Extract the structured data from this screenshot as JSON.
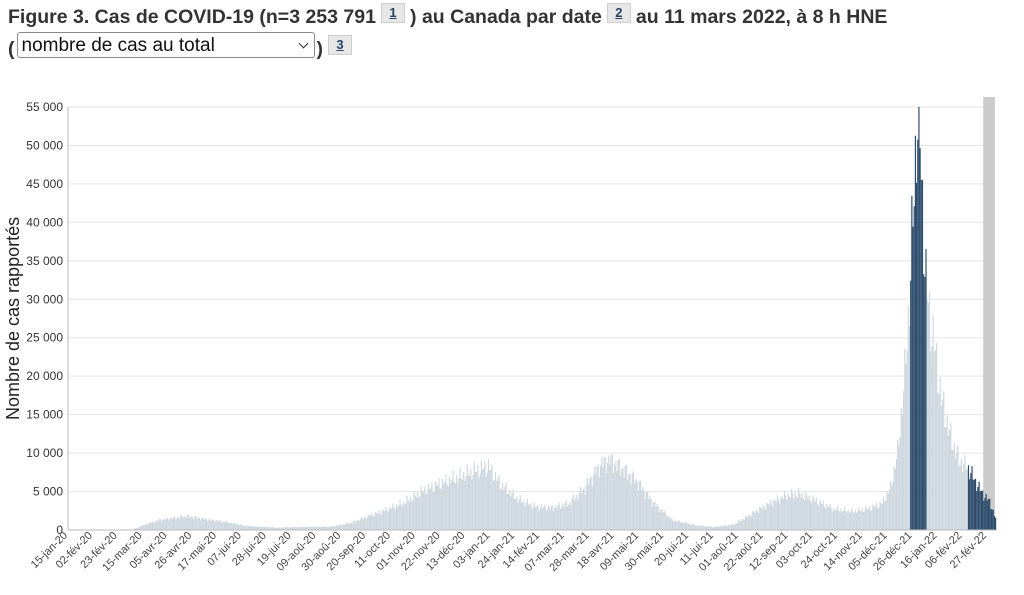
{
  "figure": {
    "title_part1": "Figure 3. Cas de COVID-19 (n=3 253 791",
    "footnote1": "1",
    "title_part2": ") au Canada par date",
    "footnote2": "2",
    "title_part3": "au 11 mars 2022, à 8 h HNE",
    "paren_open": "(",
    "paren_close": ")",
    "footnote3": "3",
    "select": {
      "selected": "nombre de cas au total"
    }
  },
  "colors": {
    "bar_light": "#cfd8e0",
    "bar_dark": "#2f4e6e",
    "recent_band": "#cccccc",
    "grid": "#e6e6e6"
  },
  "chart_data": {
    "type": "bar",
    "ylabel": "Nombre de cas rapportés",
    "xlabel": "",
    "ylim": [
      0,
      55000
    ],
    "y_ticks": [
      {
        "v": 0,
        "label": "0"
      },
      {
        "v": 5000,
        "label": "5 000"
      },
      {
        "v": 10000,
        "label": "10 000"
      },
      {
        "v": 15000,
        "label": "15 000"
      },
      {
        "v": 20000,
        "label": "20 000"
      },
      {
        "v": 25000,
        "label": "25 000"
      },
      {
        "v": 30000,
        "label": "30 000"
      },
      {
        "v": 35000,
        "label": "35 000"
      },
      {
        "v": 40000,
        "label": "40 000"
      },
      {
        "v": 45000,
        "label": "45 000"
      },
      {
        "v": 50000,
        "label": "50 000"
      },
      {
        "v": 55000,
        "label": "55 000"
      }
    ],
    "x_start": "2020-01-15",
    "x_end": "2022-03-11",
    "x_ticks": [
      "15-jan-20",
      "02-fév-20",
      "23-fév-20",
      "15-mar-20",
      "05-avr-20",
      "26-avr-20",
      "17-mai-20",
      "07-jui-20",
      "28-jui-20",
      "19-jui-20",
      "09-aoû-20",
      "30-aoû-20",
      "20-sep-20",
      "11-oct-20",
      "01-nov-20",
      "22-nov-20",
      "13-déc-20",
      "03-jan-21",
      "24-jan-21",
      "14-fév-21",
      "07-mar-21",
      "28-mar-21",
      "18-avr-21",
      "09-mai-21",
      "30-mai-21",
      "20-jui-21",
      "11-jui-21",
      "01-aoû-21",
      "22-aoû-21",
      "12-sep-21",
      "03-oct-21",
      "24-oct-21",
      "14-nov-21",
      "05-déc-21",
      "26-déc-21",
      "16-jan-22",
      "06-fév-22",
      "27-fév-22"
    ],
    "highlight": {
      "from": "2022-02-16",
      "to": "2022-03-11",
      "note": "period shown dark"
    },
    "shaded_recent": {
      "from": "2022-03-01",
      "to": "2022-03-11"
    },
    "series_points": [
      [
        "2020-01-15",
        0
      ],
      [
        "2020-03-01",
        0
      ],
      [
        "2020-03-10",
        100
      ],
      [
        "2020-03-20",
        700
      ],
      [
        "2020-04-01",
        1300
      ],
      [
        "2020-04-25",
        1800
      ],
      [
        "2020-05-10",
        1400
      ],
      [
        "2020-05-25",
        1100
      ],
      [
        "2020-06-15",
        500
      ],
      [
        "2020-07-10",
        300
      ],
      [
        "2020-08-01",
        400
      ],
      [
        "2020-08-25",
        450
      ],
      [
        "2020-09-10",
        900
      ],
      [
        "2020-09-25",
        1800
      ],
      [
        "2020-10-10",
        2600
      ],
      [
        "2020-10-25",
        3500
      ],
      [
        "2020-11-10",
        5000
      ],
      [
        "2020-11-25",
        6000
      ],
      [
        "2020-12-10",
        6800
      ],
      [
        "2020-12-25",
        7700
      ],
      [
        "2021-01-05",
        8200
      ],
      [
        "2021-01-15",
        6000
      ],
      [
        "2021-01-30",
        4000
      ],
      [
        "2021-02-15",
        3000
      ],
      [
        "2021-03-01",
        2900
      ],
      [
        "2021-03-15",
        3500
      ],
      [
        "2021-03-28",
        5500
      ],
      [
        "2021-04-10",
        8500
      ],
      [
        "2021-04-18",
        9100
      ],
      [
        "2021-04-28",
        8000
      ],
      [
        "2021-05-10",
        6500
      ],
      [
        "2021-05-25",
        3500
      ],
      [
        "2021-06-10",
        1300
      ],
      [
        "2021-06-30",
        600
      ],
      [
        "2021-07-15",
        400
      ],
      [
        "2021-08-01",
        700
      ],
      [
        "2021-08-15",
        2000
      ],
      [
        "2021-09-01",
        3500
      ],
      [
        "2021-09-15",
        4500
      ],
      [
        "2021-09-25",
        4700
      ],
      [
        "2021-10-10",
        3800
      ],
      [
        "2021-10-25",
        2700
      ],
      [
        "2021-11-10",
        2400
      ],
      [
        "2021-11-25",
        2800
      ],
      [
        "2021-12-05",
        3500
      ],
      [
        "2021-12-12",
        5500
      ],
      [
        "2021-12-18",
        10000
      ],
      [
        "2021-12-24",
        20000
      ],
      [
        "2021-12-28",
        30000
      ],
      [
        "2022-01-01",
        44000
      ],
      [
        "2022-01-03",
        52000
      ],
      [
        "2022-01-05",
        55000
      ],
      [
        "2022-01-08",
        42000
      ],
      [
        "2022-01-11",
        32000
      ],
      [
        "2022-01-14",
        28000
      ],
      [
        "2022-01-18",
        24000
      ],
      [
        "2022-01-24",
        17000
      ],
      [
        "2022-02-01",
        12000
      ],
      [
        "2022-02-08",
        9000
      ],
      [
        "2022-02-16",
        8000
      ],
      [
        "2022-02-23",
        6000
      ],
      [
        "2022-03-01",
        4500
      ],
      [
        "2022-03-06",
        3700
      ],
      [
        "2022-03-11",
        1500
      ]
    ]
  }
}
